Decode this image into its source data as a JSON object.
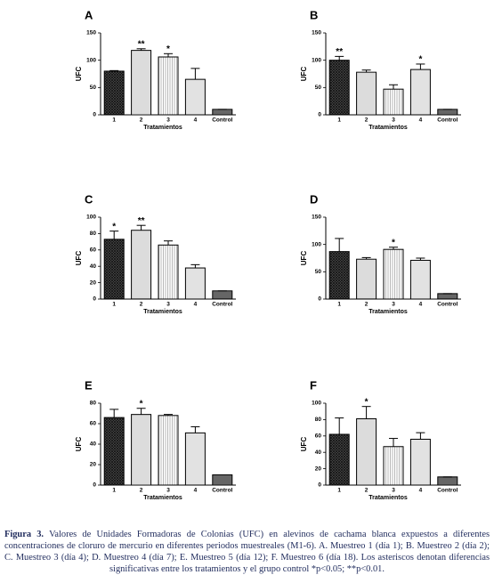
{
  "chart_data": [
    {
      "type": "bar",
      "panel": "A",
      "ylabel": "UFC",
      "xlabel": "Tratamientos",
      "categories": [
        "1",
        "2",
        "3",
        "4",
        "Control"
      ],
      "values": [
        80,
        118,
        106,
        65,
        10
      ],
      "errors": [
        1,
        3,
        6,
        20,
        0
      ],
      "annotations": [
        null,
        "**",
        "*",
        null,
        null
      ],
      "ylim": [
        0,
        150
      ],
      "yticks": [
        0,
        50,
        100,
        150
      ]
    },
    {
      "type": "bar",
      "panel": "B",
      "ylabel": "UFC",
      "xlabel": "Tratamientos",
      "categories": [
        "1",
        "2",
        "3",
        "4",
        "Control"
      ],
      "values": [
        100,
        78,
        47,
        83,
        10
      ],
      "errors": [
        7,
        4,
        8,
        10,
        0
      ],
      "annotations": [
        "**",
        null,
        null,
        "*",
        null
      ],
      "ylim": [
        0,
        150
      ],
      "yticks": [
        0,
        50,
        100,
        150
      ]
    },
    {
      "type": "bar",
      "panel": "C",
      "ylabel": "UFC",
      "xlabel": "Tratamientos",
      "categories": [
        "1",
        "2",
        "3",
        "4",
        "Control"
      ],
      "values": [
        73,
        84,
        66,
        38,
        10
      ],
      "errors": [
        10,
        6,
        5,
        4,
        0
      ],
      "annotations": [
        "*",
        "**",
        null,
        null,
        null
      ],
      "ylim": [
        0,
        100
      ],
      "yticks": [
        0,
        20,
        40,
        60,
        80,
        100
      ]
    },
    {
      "type": "bar",
      "panel": "D",
      "ylabel": "UFC",
      "xlabel": "Tratamientos",
      "categories": [
        "1",
        "2",
        "3",
        "4",
        "Control"
      ],
      "values": [
        87,
        73,
        91,
        71,
        10
      ],
      "errors": [
        24,
        3,
        4,
        4,
        0
      ],
      "annotations": [
        null,
        null,
        "*",
        null,
        null
      ],
      "ylim": [
        0,
        150
      ],
      "yticks": [
        0,
        50,
        100,
        150
      ]
    },
    {
      "type": "bar",
      "panel": "E",
      "ylabel": "UFC",
      "xlabel": "Tratamientos",
      "categories": [
        "1",
        "2",
        "3",
        "4",
        "Control"
      ],
      "values": [
        66,
        69,
        68,
        51,
        10
      ],
      "errors": [
        8,
        6,
        1,
        6,
        0
      ],
      "annotations": [
        null,
        "*",
        null,
        null,
        null
      ],
      "ylim": [
        0,
        80
      ],
      "yticks": [
        0,
        20,
        40,
        60,
        80
      ]
    },
    {
      "type": "bar",
      "panel": "F",
      "ylabel": "UFC",
      "xlabel": "Tratamientos",
      "categories": [
        "1",
        "2",
        "3",
        "4",
        "Control"
      ],
      "values": [
        62,
        81,
        47,
        56,
        10
      ],
      "errors": [
        20,
        15,
        10,
        8,
        0
      ],
      "annotations": [
        null,
        "*",
        null,
        null,
        null
      ],
      "ylim": [
        0,
        100
      ],
      "yticks": [
        0,
        20,
        40,
        60,
        80,
        100
      ]
    }
  ],
  "caption": {
    "label": "Figura 3.",
    "text": "Valores de Unidades Formadoras de Colonias (UFC) en alevinos de cachama blanca expuestos a diferentes concentraciones de cloruro de mercurio en diferentes periodos muestreales (M1-6). A. Muestreo 1 (día 1); B. Muestreo 2 (día 2); C. Muestreo 3 (día 4); D. Muestreo 4 (día 7); E. Muestreo 5 (día 12); F. Muestreo 6 (día 18). Los asteriscos denotan diferencias significativas entre los tratamientos y el grupo control *p<0.05; **p<0.01."
  }
}
